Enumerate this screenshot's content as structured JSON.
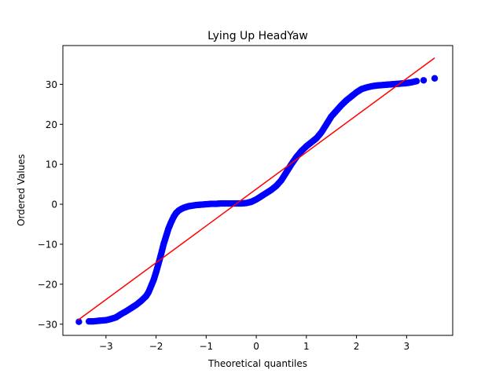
{
  "chart_data": {
    "type": "scatter",
    "title": "Lying Up HeadYaw",
    "xlabel": "Theoretical quantiles",
    "ylabel": "Ordered Values",
    "xlim": [
      -3.86,
      3.92
    ],
    "ylim": [
      -32.8,
      39.7
    ],
    "xticks": [
      -3,
      -2,
      -1,
      0,
      1,
      2,
      3
    ],
    "yticks": [
      -30,
      -20,
      -10,
      0,
      10,
      20,
      30
    ],
    "xtick_labels": [
      "−3",
      "−2",
      "−1",
      "0",
      "1",
      "2",
      "3"
    ],
    "ytick_labels": [
      "−30",
      "−20",
      "−10",
      "0",
      "10",
      "20",
      "30"
    ],
    "grid": false,
    "series": [
      {
        "kind": "points",
        "color": "#0000ff",
        "marker": "circle",
        "x": [
          -3.54,
          -3.34,
          -3.25,
          -3.18,
          -3.1,
          -3.0,
          -2.9,
          -2.8,
          -2.7,
          -2.6,
          -2.5,
          -2.4,
          -2.3,
          -2.2,
          -2.15,
          -2.1,
          -2.05,
          -2.0,
          -1.95,
          -1.9,
          -1.85,
          -1.8,
          -1.75,
          -1.7,
          -1.65,
          -1.6,
          -1.55,
          -1.5,
          -1.45,
          -1.4,
          -1.35,
          -1.3,
          -1.2,
          -1.1,
          -1.0,
          -0.9,
          -0.8,
          -0.7,
          -0.6,
          -0.5,
          -0.4,
          -0.3,
          -0.2,
          -0.1,
          0.0,
          0.1,
          0.2,
          0.3,
          0.4,
          0.5,
          0.6,
          0.7,
          0.8,
          0.9,
          1.0,
          1.1,
          1.2,
          1.3,
          1.4,
          1.45,
          1.5,
          1.6,
          1.7,
          1.8,
          1.9,
          2.0,
          2.1,
          2.2,
          2.3,
          2.4,
          2.5,
          2.6,
          2.7,
          2.8,
          2.9,
          3.0,
          3.1,
          3.2,
          3.34,
          3.56
        ],
        "y": [
          -29.4,
          -29.3,
          -29.3,
          -29.2,
          -29.1,
          -29.0,
          -28.7,
          -28.3,
          -27.5,
          -26.8,
          -26.0,
          -25.2,
          -24.2,
          -23.0,
          -22.0,
          -20.5,
          -19.0,
          -17.0,
          -14.8,
          -12.5,
          -10.0,
          -8.0,
          -6.0,
          -4.5,
          -3.2,
          -2.2,
          -1.6,
          -1.2,
          -0.9,
          -0.7,
          -0.5,
          -0.4,
          -0.2,
          -0.1,
          0.0,
          0.1,
          0.1,
          0.2,
          0.2,
          0.2,
          0.2,
          0.2,
          0.3,
          0.6,
          1.2,
          2.0,
          2.8,
          3.6,
          4.6,
          6.0,
          8.0,
          10.0,
          11.8,
          13.3,
          14.5,
          15.5,
          16.5,
          18.0,
          20.0,
          21.0,
          22.0,
          23.4,
          24.8,
          26.0,
          27.0,
          28.0,
          28.8,
          29.2,
          29.5,
          29.7,
          29.8,
          29.9,
          30.0,
          30.1,
          30.2,
          30.3,
          30.5,
          30.8,
          31.0,
          31.5
        ]
      },
      {
        "kind": "line",
        "color": "#ff0000",
        "x": [
          -3.56,
          3.56
        ],
        "y": [
          -29.0,
          36.6
        ]
      }
    ]
  }
}
